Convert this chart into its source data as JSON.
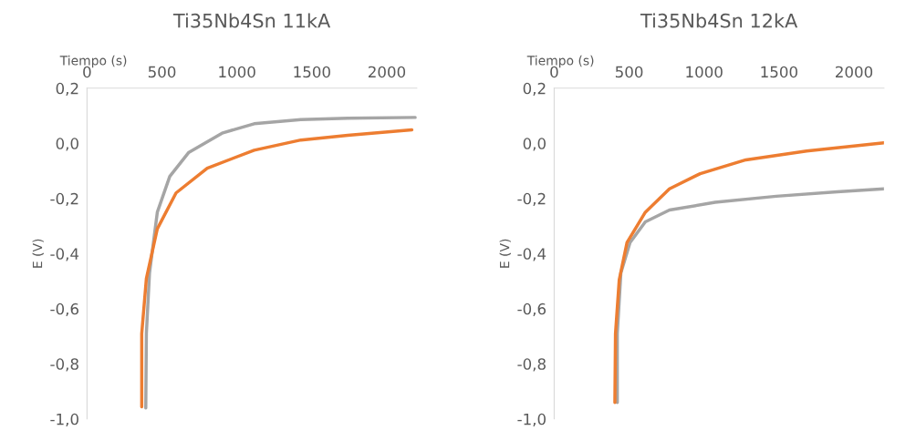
{
  "chart_data": [
    {
      "type": "line",
      "title": "Ti35Nb4Sn 11kA",
      "xlabel": "Tiempo (s)",
      "ylabel": "E (V)",
      "xlim": [
        0,
        2200
      ],
      "xticks": [
        0,
        500,
        1000,
        1500,
        2000
      ],
      "ylim": [
        -1.0,
        0.2
      ],
      "yticks": [
        {
          "value": -1.0,
          "label": "-1,0"
        },
        {
          "value": -0.8,
          "label": "-0,8"
        },
        {
          "value": -0.6,
          "label": "-0,6"
        },
        {
          "value": -0.4,
          "label": "-0,4"
        },
        {
          "value": -0.2,
          "label": "-0,2"
        },
        {
          "value": 0.0,
          "label": "0,0"
        },
        {
          "value": 0.2,
          "label": "0,2"
        }
      ],
      "grid": false,
      "legend": false,
      "marker": "none",
      "line_style": "solid",
      "series": [
        {
          "color": "#a5a5a5",
          "x": [
            392,
            396,
            417,
            469,
            552,
            677,
            906,
            1115,
            1427,
            1740,
            2190
          ],
          "values": [
            -0.96,
            -0.69,
            -0.47,
            -0.25,
            -0.12,
            -0.034,
            0.038,
            0.071,
            0.086,
            0.091,
            0.094
          ]
        },
        {
          "color": "#ed7d31",
          "x": [
            365,
            365,
            396,
            469,
            594,
            802,
            1115,
            1427,
            1740,
            2167
          ],
          "values": [
            -0.956,
            -0.69,
            -0.49,
            -0.31,
            -0.18,
            -0.09,
            -0.025,
            0.012,
            0.029,
            0.049
          ]
        }
      ]
    },
    {
      "type": "line",
      "title": "Ti35Nb4Sn 12kA",
      "xlabel": "Tiempo (s)",
      "ylabel": "E (V)",
      "xlim": [
        0,
        2200
      ],
      "xticks": [
        0,
        500,
        1000,
        1500,
        2000
      ],
      "ylim": [
        -1.0,
        0.2
      ],
      "yticks": [
        {
          "value": -1.0,
          "label": "-1,0"
        },
        {
          "value": -0.8,
          "label": "-0,8"
        },
        {
          "value": -0.6,
          "label": "-0,6"
        },
        {
          "value": -0.4,
          "label": "-0,4"
        },
        {
          "value": -0.2,
          "label": "-0,2"
        },
        {
          "value": 0.0,
          "label": "0,0"
        },
        {
          "value": 0.2,
          "label": "0,2"
        }
      ],
      "grid": false,
      "legend": false,
      "marker": "none",
      "line_style": "solid",
      "series": [
        {
          "color": "#a5a5a5",
          "x": [
            421,
            421,
            445,
            506,
            608,
            769,
            1074,
            1482,
            1889,
            2200
          ],
          "values": [
            -0.94,
            -0.69,
            -0.47,
            -0.36,
            -0.285,
            -0.242,
            -0.214,
            -0.192,
            -0.176,
            -0.165
          ]
        },
        {
          "color": "#ed7d31",
          "x": [
            405,
            409,
            434,
            486,
            608,
            769,
            974,
            1279,
            1684,
            2200
          ],
          "values": [
            -0.94,
            -0.69,
            -0.495,
            -0.36,
            -0.25,
            -0.165,
            -0.11,
            -0.06,
            -0.028,
            0.002
          ]
        }
      ]
    }
  ]
}
